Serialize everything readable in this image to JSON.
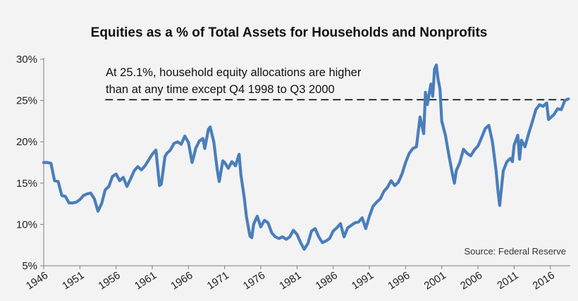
{
  "chart_data": {
    "type": "line",
    "title": "Equities as a % of Total Assets for Households and Nonprofits",
    "xlabel": "",
    "ylabel": "",
    "xlim": [
      1946,
      2018.75
    ],
    "ylim": [
      5,
      30
    ],
    "y_ticks": [
      "5%",
      "10%",
      "15%",
      "20%",
      "25%",
      "30%"
    ],
    "x_ticks": [
      "1946",
      "1951",
      "1956",
      "1961",
      "1966",
      "1971",
      "1976",
      "1981",
      "1986",
      "1991",
      "1996",
      "2001",
      "2006",
      "2011",
      "2016"
    ],
    "grid": false,
    "legend": "none",
    "annotation_lines": [
      "At 25.1%, household equity allocations are higher",
      "than at any time except Q4 1998 to Q3 2000"
    ],
    "source_note": "Source:  Federal Reserve",
    "reference_line": {
      "value": 25.1,
      "x_from": 1954.5,
      "x_to": 2018.6,
      "style": "dashed"
    },
    "line_color": "#4a7ebb",
    "series": [
      {
        "x": [
          1946,
          1946.5,
          1947,
          1947.5,
          1948,
          1948.5,
          1949,
          1949.5,
          1950,
          1950.5,
          1951,
          1951.5,
          1952,
          1952.5,
          1953,
          1953.5,
          1954,
          1954.5,
          1955,
          1955.5,
          1956,
          1956.5,
          1957,
          1957.5,
          1958,
          1958.5,
          1959,
          1959.5,
          1960,
          1960.5,
          1961,
          1961.5,
          1962,
          1962.25,
          1962.75,
          1963,
          1963.5,
          1964,
          1964.5,
          1965,
          1965.5,
          1966,
          1966.5,
          1966.75,
          1967,
          1967.5,
          1968,
          1968.25,
          1968.75,
          1969,
          1969.5,
          1970,
          1970.25,
          1970.75,
          1971,
          1971.5,
          1972,
          1972.5,
          1973,
          1973.25,
          1973.75,
          1974,
          1974.5,
          1974.75,
          1975,
          1975.5,
          1976,
          1976.5,
          1977,
          1977.5,
          1978,
          1978.5,
          1979,
          1979.5,
          1980,
          1980.5,
          1981,
          1981.5,
          1982,
          1982.5,
          1983,
          1983.5,
          1984,
          1984.5,
          1985,
          1985.5,
          1986,
          1986.5,
          1987,
          1987.5,
          1988,
          1988.5,
          1989,
          1989.5,
          1990,
          1990.5,
          1991,
          1991.5,
          1992,
          1992.5,
          1993,
          1993.5,
          1994,
          1994.5,
          1995,
          1995.5,
          1996,
          1996.5,
          1997,
          1997.5,
          1998,
          1998.5,
          1998.75,
          1999,
          1999.5,
          1999.75,
          2000,
          2000.25,
          2000.5,
          2000.75,
          2001,
          2001.5,
          2002,
          2002.5,
          2002.75,
          2003,
          2003.5,
          2004,
          2004.5,
          2005,
          2005.5,
          2006,
          2006.5,
          2007,
          2007.5,
          2008,
          2008.5,
          2008.75,
          2009,
          2009.5,
          2010,
          2010.5,
          2010.75,
          2011,
          2011.5,
          2011.75,
          2012,
          2012.5,
          2013,
          2013.5,
          2014,
          2014.5,
          2015,
          2015.5,
          2015.75,
          2016,
          2016.5,
          2017,
          2017.5,
          2018,
          2018.5
        ],
        "y": [
          17.5,
          17.5,
          17.4,
          15.3,
          15.2,
          13.5,
          13.4,
          12.6,
          12.6,
          12.7,
          13.0,
          13.5,
          13.7,
          13.8,
          13.1,
          11.6,
          12.5,
          14.2,
          14.6,
          15.8,
          16.1,
          15.3,
          15.7,
          14.6,
          15.5,
          16.5,
          17.0,
          16.6,
          17.1,
          17.8,
          18.5,
          19.0,
          14.7,
          14.9,
          18.2,
          18.6,
          19.0,
          19.8,
          20.0,
          19.7,
          20.7,
          19.9,
          17.5,
          18.3,
          19.2,
          20.1,
          20.4,
          19.2,
          21.5,
          21.8,
          20.0,
          16.5,
          15.2,
          17.7,
          17.5,
          16.8,
          17.6,
          17.1,
          18.5,
          16.0,
          13.0,
          11.0,
          8.6,
          8.4,
          10.0,
          11.0,
          9.7,
          10.5,
          10.2,
          9.0,
          8.5,
          8.3,
          8.5,
          8.2,
          8.5,
          9.3,
          8.8,
          7.8,
          7.0,
          7.7,
          9.2,
          9.5,
          8.5,
          7.8,
          8.0,
          8.3,
          9.2,
          9.6,
          10.1,
          8.5,
          9.6,
          9.9,
          10.2,
          10.3,
          10.8,
          9.5,
          11.0,
          12.2,
          12.7,
          13.1,
          14.0,
          14.5,
          15.3,
          14.7,
          15.1,
          16.1,
          17.5,
          18.6,
          19.2,
          19.4,
          23.0,
          21.0,
          26.0,
          24.5,
          27.0,
          25.5,
          28.8,
          29.3,
          27.5,
          26.4,
          22.5,
          20.8,
          18.3,
          16.0,
          15.0,
          16.5,
          17.5,
          19.1,
          18.6,
          18.3,
          19.0,
          19.5,
          20.5,
          21.6,
          22.0,
          20.0,
          16.5,
          14.2,
          12.3,
          16.5,
          17.6,
          18.0,
          17.6,
          19.6,
          20.8,
          17.9,
          20.2,
          19.4,
          21.0,
          22.4,
          23.9,
          24.5,
          24.3,
          24.7,
          22.7,
          22.9,
          23.3,
          24.0,
          23.9,
          25.0,
          25.2
        ]
      }
    ]
  }
}
